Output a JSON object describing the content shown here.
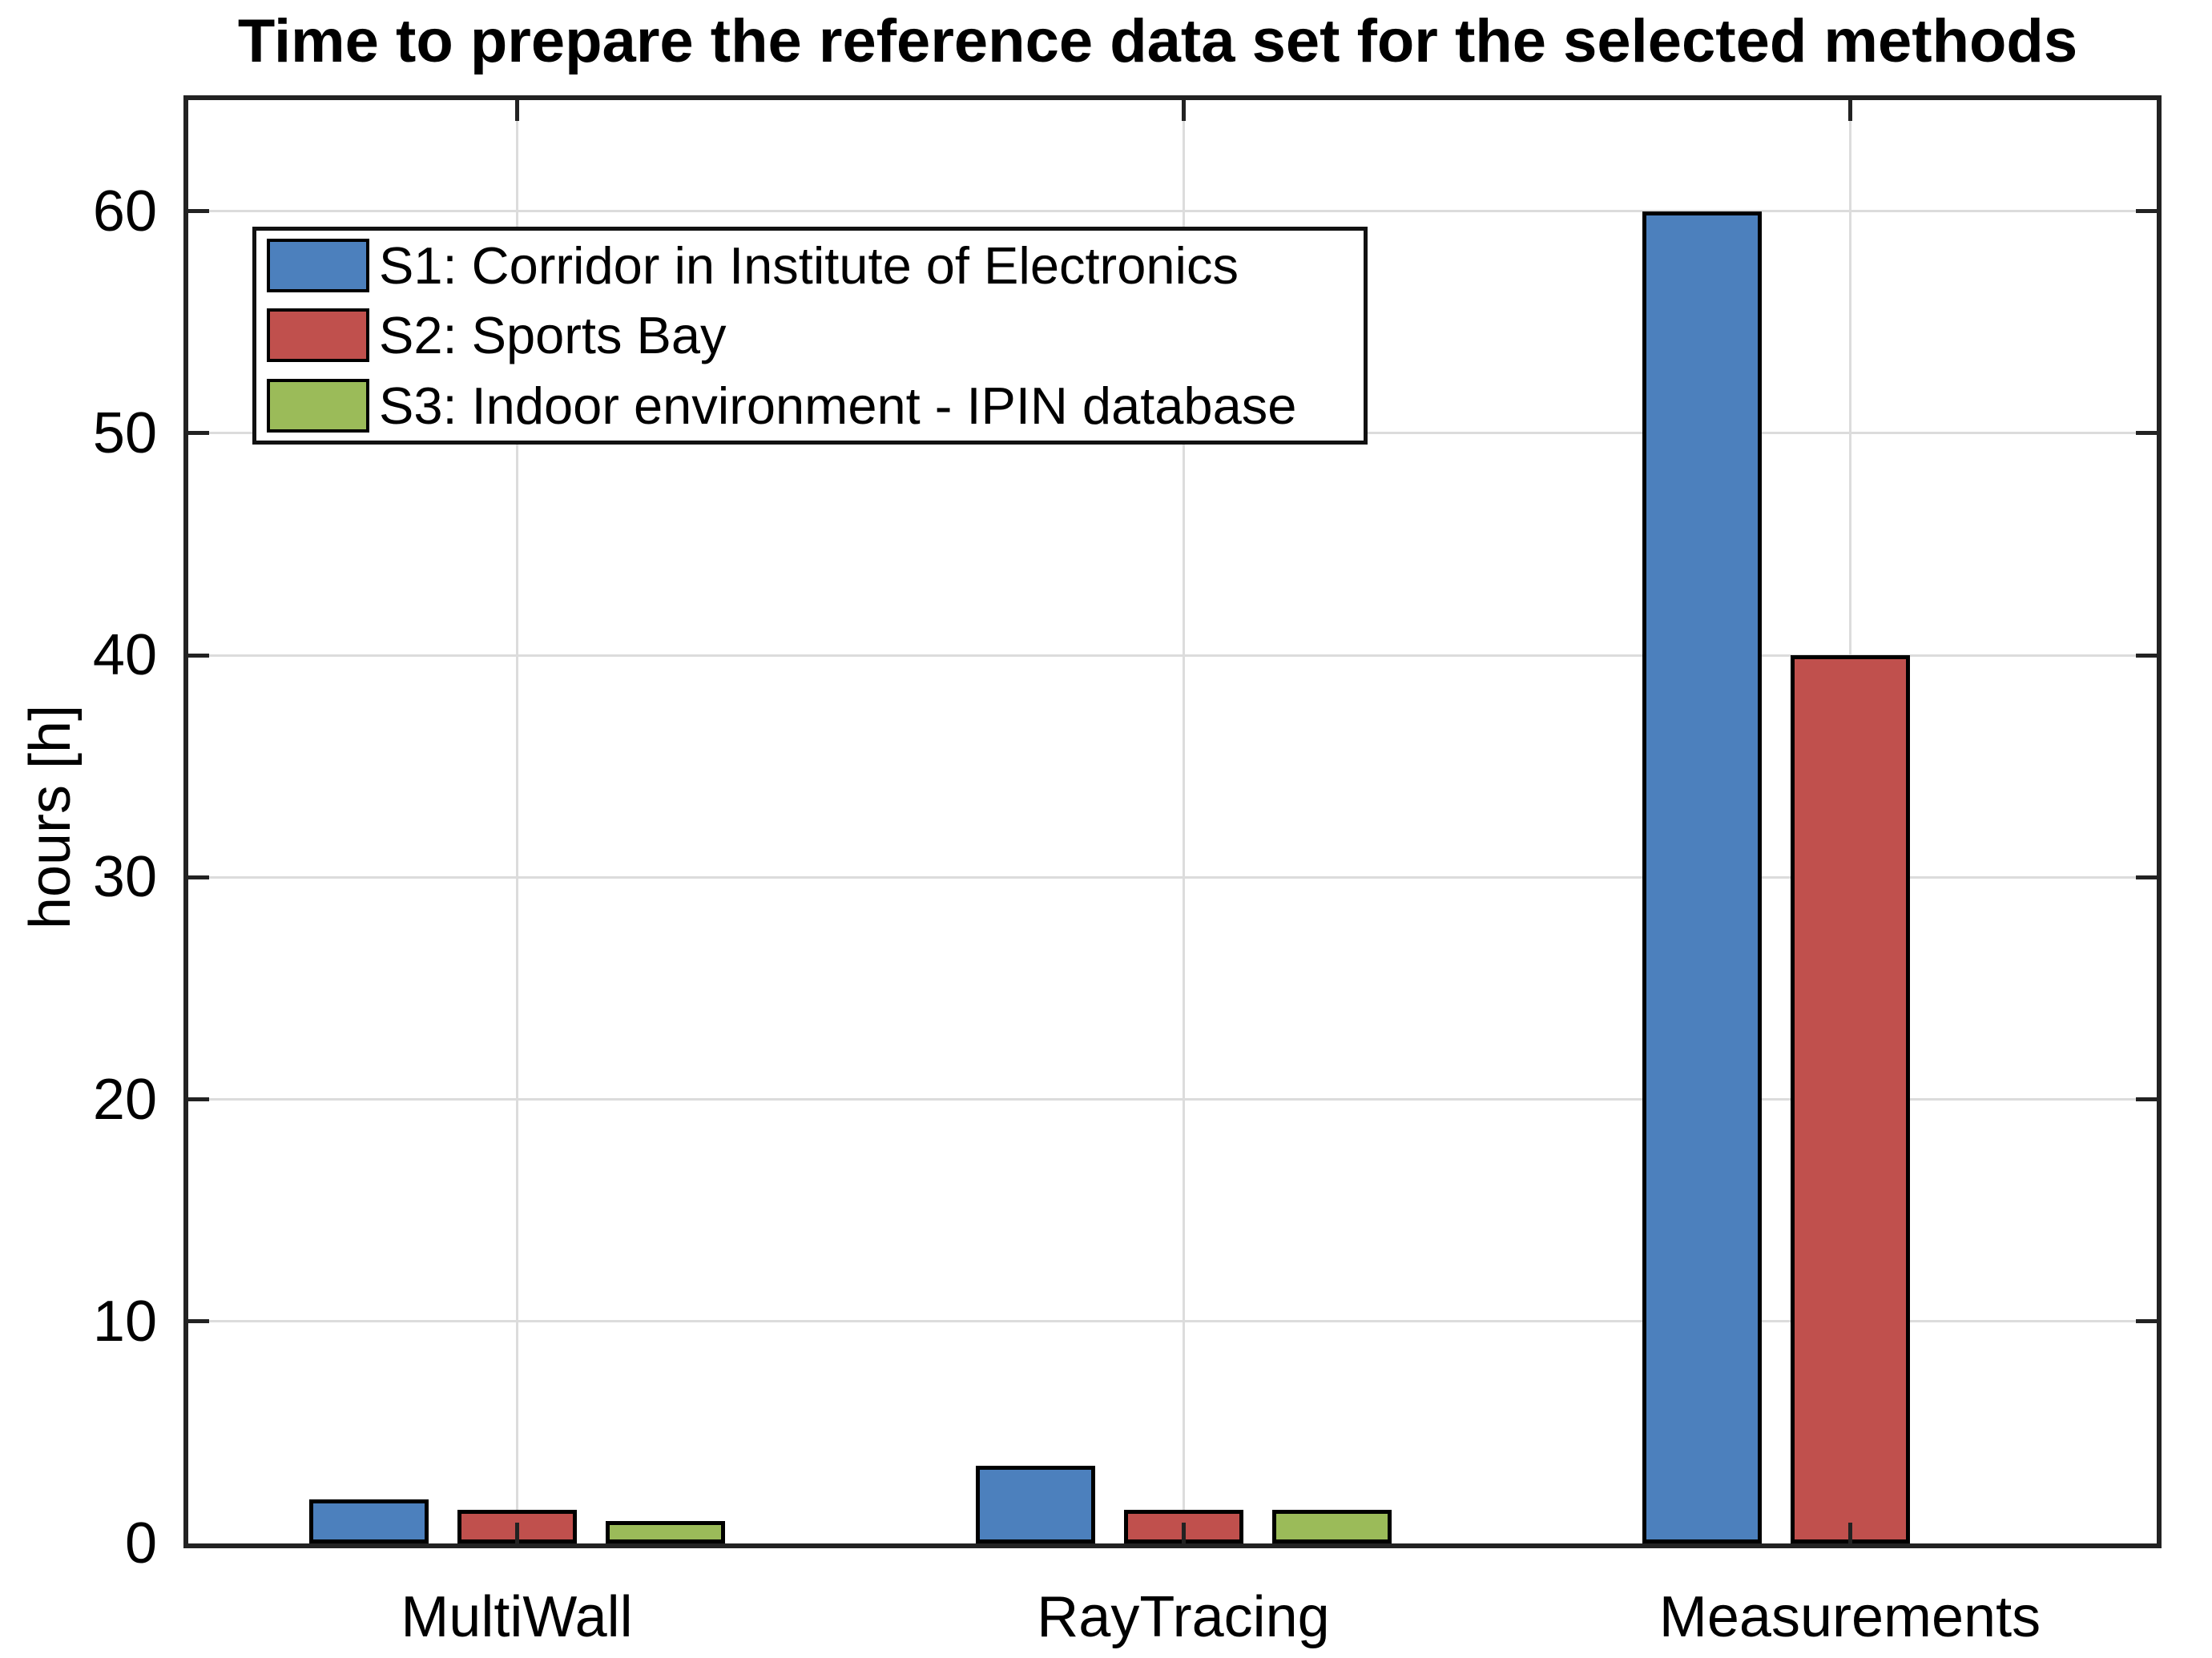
{
  "title": "Time to prepare the reference data set for the selected methods",
  "chart_data": {
    "type": "bar",
    "title": "Time to prepare the reference data set for the selected methods",
    "xlabel": "",
    "ylabel": "hours [h]",
    "categories": [
      "MultiWall",
      "RayTracing",
      "Measurements"
    ],
    "series": [
      {
        "name": "S1: Corridor in Institute of Electronics",
        "color": "#4C80BD",
        "values": [
          2,
          3.5,
          60
        ]
      },
      {
        "name": "S2: Sports Bay",
        "color": "#C0504D",
        "values": [
          1.5,
          1.5,
          40
        ]
      },
      {
        "name": "S3: Indoor environment - IPIN database",
        "color": "#9BBB59",
        "values": [
          1,
          1.5,
          0
        ]
      }
    ],
    "ylim": [
      0,
      65
    ],
    "yticks": [
      0,
      10,
      20,
      30,
      40,
      50,
      60
    ],
    "grid": true,
    "legend_position": "top-left",
    "axis_color": "#222222",
    "gridline_color": "#dcdcdc",
    "bar_edge_color": "#000000",
    "background_color": "#ffffff"
  }
}
